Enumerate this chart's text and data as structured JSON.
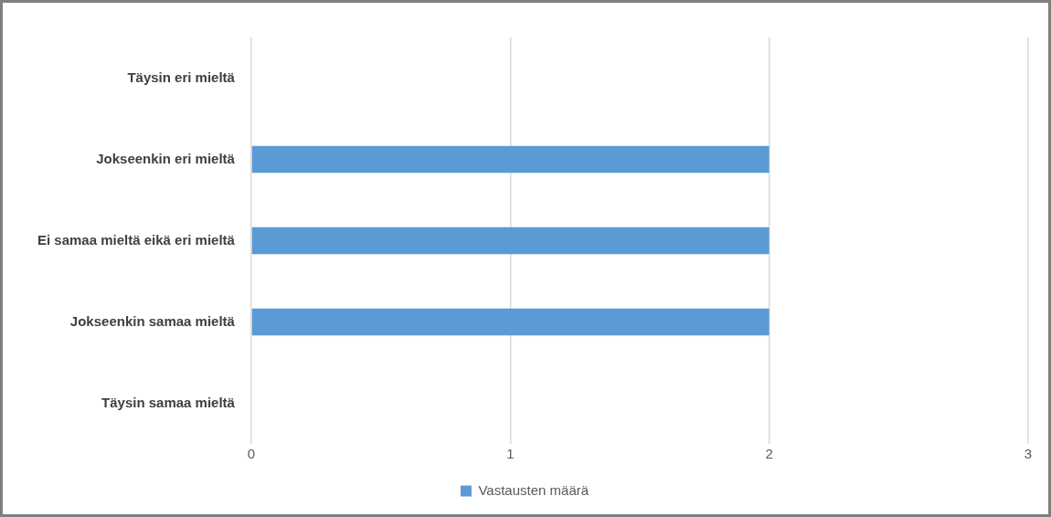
{
  "chart_data": {
    "type": "bar",
    "orientation": "horizontal",
    "categories": [
      "Täysin eri mieltä",
      "Jokseenkin eri mieltä",
      "Ei samaa mieltä eikä eri mieltä",
      "Jokseenkin samaa mieltä",
      "Täysin samaa mieltä"
    ],
    "series": [
      {
        "name": "Vastausten määrä",
        "color": "#5b9bd5",
        "values": [
          0,
          2,
          2,
          2,
          0
        ]
      }
    ],
    "xlim": [
      0,
      3
    ],
    "xticks": [
      0,
      1,
      2,
      3
    ],
    "grid": "x",
    "legend": "bottom"
  }
}
